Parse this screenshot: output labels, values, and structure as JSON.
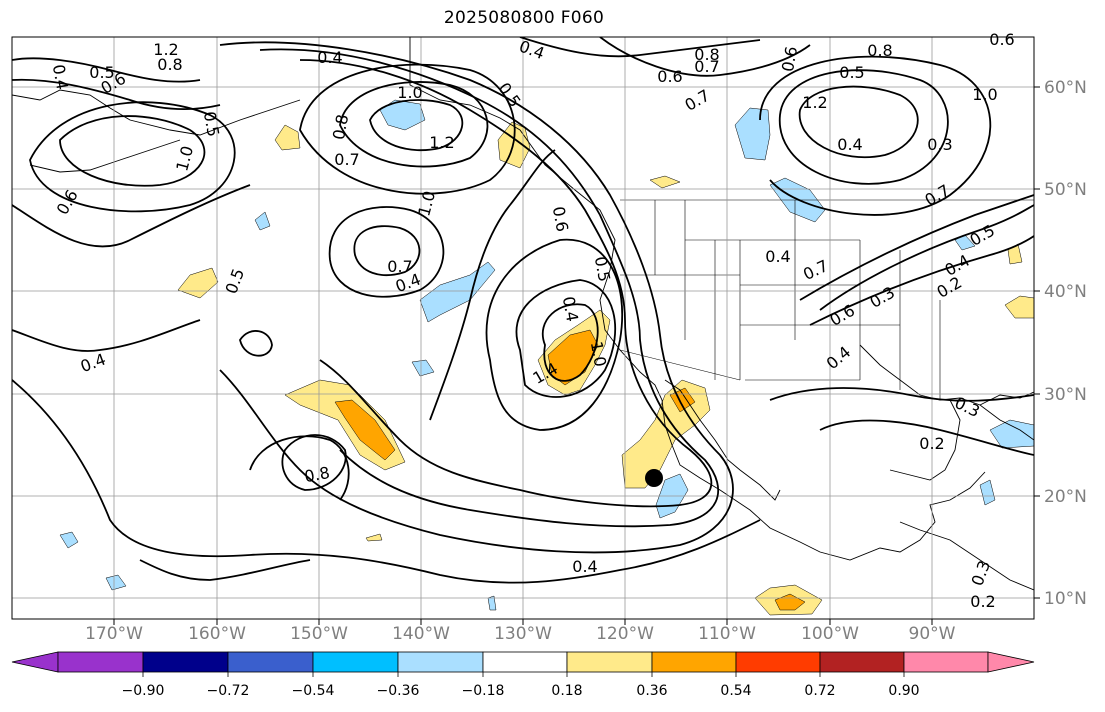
{
  "title": "2025080800 F060",
  "longitude_labels": [
    "170°W",
    "160°W",
    "150°W",
    "140°W",
    "130°W",
    "120°W",
    "110°W",
    "100°W",
    "90°W"
  ],
  "latitude_labels": [
    "60°N",
    "50°N",
    "40°N",
    "30°N",
    "20°N",
    "10°N"
  ],
  "contour_labels": [
    "0.4",
    "0.4",
    "0.5",
    "0.6",
    "0.7",
    "0.8",
    "1.0",
    "1.2",
    "0.7",
    "0.8",
    "0.6",
    "0.5",
    "0.4",
    "0.6",
    "0.5",
    "0.4",
    "0.5",
    "1.0",
    "1.2",
    "0.8",
    "1.0",
    "0.7",
    "0.4",
    "0.6",
    "0.5",
    "0.4",
    "1.0",
    "0.8",
    "0.7",
    "0.5",
    "0.6",
    "0.8",
    "1.0",
    "1.2",
    "0.4",
    "0.3",
    "0.4",
    "0.7",
    "0.6",
    "0.3",
    "0.2",
    "0.4",
    "0.3",
    "0.2",
    "0.3",
    "0.2",
    "0.4",
    "0.6",
    "0.7",
    "0.5",
    "0.4",
    "1.4"
  ],
  "colorbar": {
    "ticks": [
      "−0.90",
      "−0.72",
      "−0.54",
      "−0.36",
      "−0.18",
      "0.18",
      "0.36",
      "0.54",
      "0.72",
      "0.90"
    ],
    "colors": [
      "#9932cc",
      "#00008b",
      "#3a5fcd",
      "#00bfff",
      "#aadfff",
      "#ffffff",
      "#ffea8a",
      "#ffa500",
      "#ff3c00",
      "#b22222",
      "#ff88aa"
    ]
  },
  "marker": "storm-center-dot"
}
